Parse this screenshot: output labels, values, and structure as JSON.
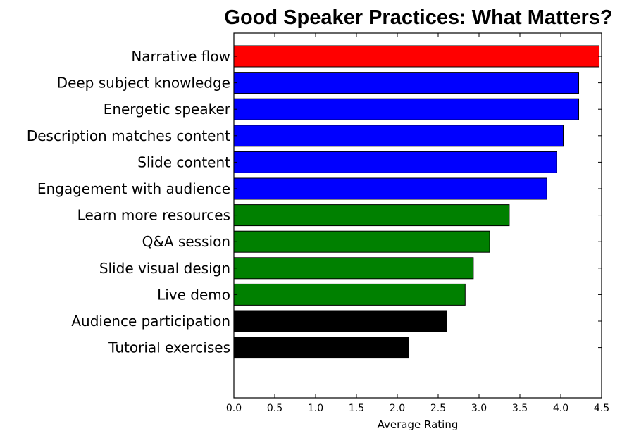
{
  "chart_data": {
    "type": "bar",
    "orientation": "horizontal",
    "title": "Good Speaker Practices: What Matters?",
    "xlabel": "Average Rating",
    "ylabel": "",
    "xlim": [
      0,
      4.5
    ],
    "xticks": [
      "0.0",
      "0.5",
      "1.0",
      "1.5",
      "2.0",
      "2.5",
      "3.0",
      "3.5",
      "4.0",
      "4.5"
    ],
    "grid": false,
    "legend": "none",
    "categories": [
      "Narrative flow",
      "Deep subject knowledge",
      "Energetic speaker",
      "Description matches content",
      "Slide content",
      "Engagement with audience",
      "Learn more resources",
      "Q&A session",
      "Slide visual design",
      "Live demo",
      "Audience participation",
      "Tutorial exercises"
    ],
    "values": [
      4.47,
      4.22,
      4.22,
      4.03,
      3.95,
      3.83,
      3.37,
      3.13,
      2.93,
      2.83,
      2.6,
      2.14
    ],
    "colors": [
      "#ff0000",
      "#0000ff",
      "#0000ff",
      "#0000ff",
      "#0000ff",
      "#0000ff",
      "#008000",
      "#008000",
      "#008000",
      "#008000",
      "#000000",
      "#000000"
    ]
  }
}
